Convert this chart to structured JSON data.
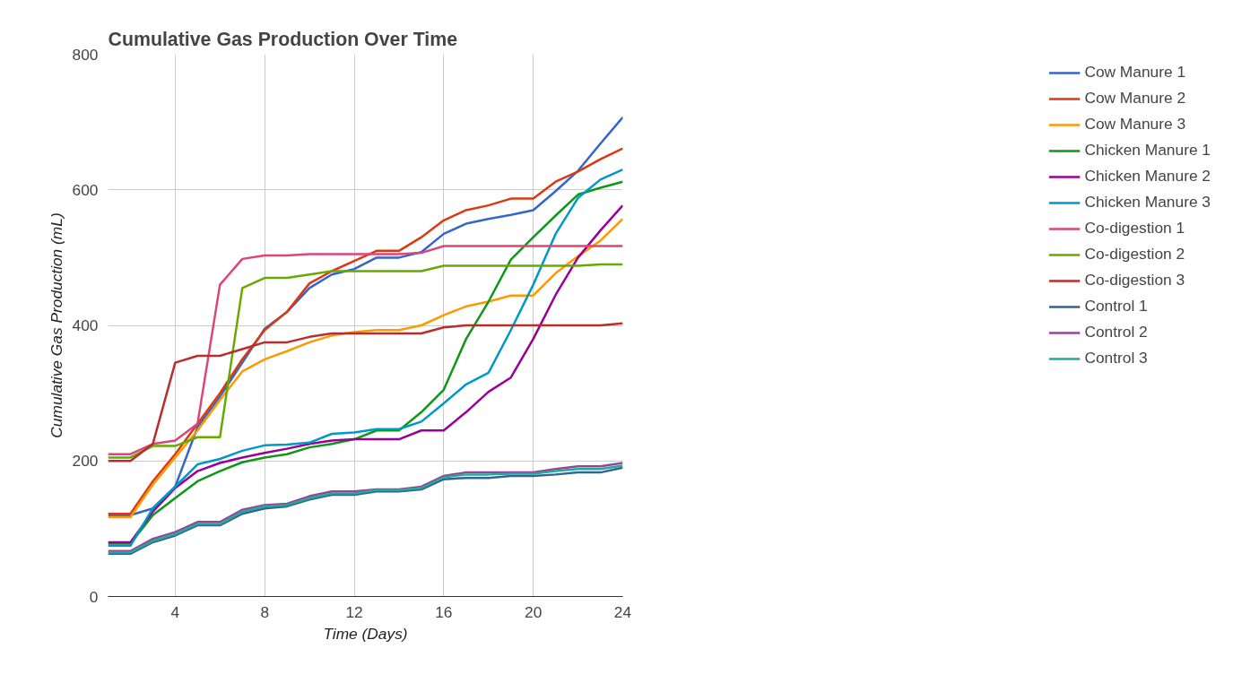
{
  "chart_data": {
    "type": "line",
    "title": "Cumulative Gas Production Over Time",
    "xlabel": "Time (Days)",
    "ylabel": "Cumulative Gas Production (mL)",
    "x": [
      1,
      2,
      3,
      4,
      5,
      6,
      7,
      8,
      9,
      10,
      11,
      12,
      13,
      14,
      15,
      16,
      17,
      18,
      19,
      20,
      21,
      22,
      23,
      24
    ],
    "xlim": [
      1,
      24
    ],
    "xticks": [
      4,
      8,
      12,
      16,
      20,
      24
    ],
    "ylim": [
      0,
      800
    ],
    "yticks": [
      0,
      200,
      400,
      600,
      800
    ],
    "grid": true,
    "legend": "right",
    "marker": "none",
    "line_style": "solid",
    "series": [
      {
        "name": "Cow Manure 1",
        "color": "#3366cc",
        "values": [
          120,
          120,
          130,
          162,
          250,
          295,
          345,
          395,
          420,
          455,
          475,
          483,
          500,
          500,
          508,
          535,
          550,
          557,
          563,
          570,
          598,
          628,
          668,
          707
        ]
      },
      {
        "name": "Cow Manure 2",
        "color": "#dc3912",
        "values": [
          122,
          122,
          170,
          210,
          255,
          300,
          350,
          393,
          420,
          462,
          480,
          495,
          510,
          510,
          530,
          555,
          570,
          577,
          587,
          587,
          612,
          627,
          645,
          661
        ]
      },
      {
        "name": "Cow Manure 3",
        "color": "#ff9900",
        "values": [
          117,
          117,
          165,
          205,
          245,
          290,
          332,
          350,
          362,
          375,
          385,
          390,
          393,
          393,
          400,
          415,
          428,
          435,
          444,
          444,
          477,
          502,
          525,
          557
        ]
      },
      {
        "name": "Chicken Manure 1",
        "color": "#109618",
        "values": [
          78,
          78,
          120,
          145,
          170,
          185,
          198,
          205,
          210,
          220,
          225,
          232,
          245,
          245,
          272,
          305,
          380,
          435,
          497,
          530,
          562,
          593,
          603,
          612
        ]
      },
      {
        "name": "Chicken Manure 2",
        "color": "#990099",
        "values": [
          80,
          80,
          125,
          160,
          185,
          197,
          205,
          212,
          218,
          225,
          230,
          232,
          232,
          232,
          245,
          245,
          272,
          302,
          323,
          380,
          445,
          500,
          540,
          577
        ]
      },
      {
        "name": "Chicken Manure 3",
        "color": "#0099c6",
        "values": [
          75,
          75,
          130,
          162,
          195,
          203,
          215,
          223,
          224,
          227,
          240,
          242,
          247,
          247,
          258,
          285,
          313,
          330,
          393,
          460,
          535,
          588,
          615,
          630
        ]
      },
      {
        "name": "Co-digestion 1",
        "color": "#dd4477",
        "values": [
          210,
          210,
          225,
          230,
          255,
          460,
          498,
          503,
          503,
          505,
          505,
          505,
          505,
          505,
          507,
          517,
          517,
          517,
          517,
          517,
          517,
          517,
          517,
          517
        ]
      },
      {
        "name": "Co-digestion 2",
        "color": "#66aa00",
        "values": [
          205,
          205,
          222,
          222,
          235,
          235,
          455,
          470,
          470,
          475,
          480,
          480,
          480,
          480,
          480,
          488,
          488,
          488,
          488,
          488,
          488,
          488,
          490,
          490
        ]
      },
      {
        "name": "Co-digestion 3",
        "color": "#b82e2e",
        "values": [
          200,
          200,
          225,
          345,
          355,
          355,
          365,
          375,
          375,
          383,
          388,
          388,
          388,
          388,
          388,
          397,
          400,
          400,
          400,
          400,
          400,
          400,
          400,
          403
        ]
      },
      {
        "name": "Control 1",
        "color": "#316395",
        "values": [
          63,
          63,
          80,
          90,
          105,
          105,
          122,
          130,
          133,
          143,
          150,
          150,
          155,
          155,
          158,
          173,
          175,
          175,
          178,
          178,
          180,
          183,
          183,
          190
        ]
      },
      {
        "name": "Control 2",
        "color": "#994499",
        "values": [
          67,
          67,
          85,
          95,
          110,
          110,
          128,
          135,
          137,
          148,
          155,
          155,
          158,
          158,
          162,
          178,
          183,
          183,
          183,
          183,
          188,
          192,
          192,
          197
        ]
      },
      {
        "name": "Control 3",
        "color": "#22aa99",
        "values": [
          65,
          65,
          82,
          92,
          107,
          107,
          125,
          133,
          135,
          145,
          152,
          152,
          157,
          157,
          160,
          176,
          180,
          180,
          181,
          181,
          185,
          188,
          188,
          193
        ]
      }
    ]
  }
}
